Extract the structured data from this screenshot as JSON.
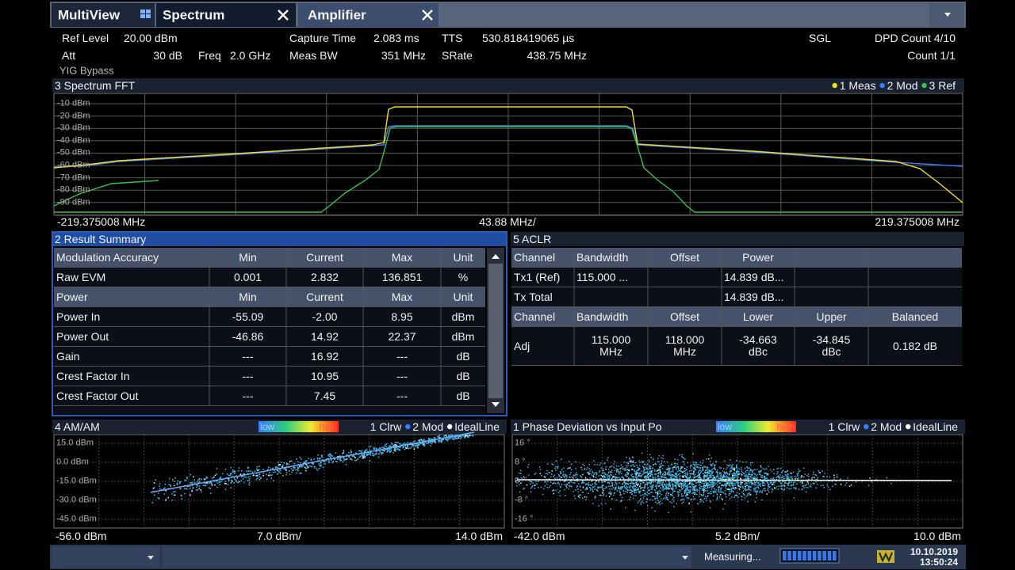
{
  "tabs": [
    {
      "label": "MultiView"
    },
    {
      "label": "Spectrum"
    },
    {
      "label": "Amplifier"
    }
  ],
  "header": {
    "ref_level": {
      "label": "Ref Level",
      "value": "20.00 dBm"
    },
    "att": {
      "label": "Att",
      "value": "30 dB"
    },
    "freq": {
      "label": "Freq",
      "value": "2.0 GHz"
    },
    "yig": "YIG Bypass",
    "capture_time": {
      "label": "Capture Time",
      "value": "2.083 ms"
    },
    "meas_bw": {
      "label": "Meas BW",
      "value": "351 MHz"
    },
    "tts": {
      "label": "TTS",
      "value": "530.818419065 µs"
    },
    "srate": {
      "label": "SRate",
      "value": "438.75 MHz"
    },
    "mode": "SGL",
    "dpd_count": "DPD Count 4/10",
    "count": "Count 1/1"
  },
  "spectrum": {
    "title": "3 Spectrum FFT",
    "legend": [
      "1 Meas",
      "2 Mod",
      "3 Ref"
    ],
    "y_labels": [
      "-10 dBm",
      "-20 dBm",
      "-30 dBm",
      "-40 dBm",
      "-50 dBm",
      "-60 dBm",
      "-70 dBm",
      "-80 dBm",
      "-90 dBm"
    ],
    "x_start": "-219.375008 MHz",
    "x_div": "43.88 MHz/",
    "x_end": "219.375008 MHz"
  },
  "result_summary": {
    "title": "2 Result Summary",
    "sections": [
      {
        "header": [
          "Modulation Accuracy",
          "Min",
          "Current",
          "Max",
          "Unit"
        ],
        "rows": [
          [
            "Raw EVM",
            "0.001",
            "2.832",
            "136.851",
            "%"
          ]
        ]
      },
      {
        "header": [
          "Power",
          "Min",
          "Current",
          "Max",
          "Unit"
        ],
        "rows": [
          [
            "Power In",
            "-55.09",
            "-2.00",
            "8.95",
            "dBm"
          ],
          [
            "Power Out",
            "-46.86",
            "14.92",
            "22.37",
            "dBm"
          ],
          [
            "Gain",
            "---",
            "16.92",
            "---",
            "dB"
          ],
          [
            "Crest Factor In",
            "---",
            "10.95",
            "---",
            "dB"
          ],
          [
            "Crest Factor Out",
            "---",
            "7.45",
            "---",
            "dB"
          ]
        ]
      }
    ]
  },
  "aclr": {
    "title": "5 ACLR",
    "header": [
      "Channel",
      "Bandwidth",
      "Offset",
      "Power"
    ],
    "rows": [
      [
        "Tx1 (Ref)",
        "115.000 ...",
        null,
        "14.839 dB..."
      ],
      [
        "Tx Total",
        null,
        null,
        "14.839 dB..."
      ]
    ],
    "adj_header": [
      "Channel",
      "Bandwidth",
      "Offset",
      "Lower",
      "Upper",
      "Balanced"
    ],
    "adj_rows": [
      [
        "Adj",
        "115.000 MHz",
        "118.000 MHz",
        "-34.663 dBc",
        "-34.845 dBc",
        "0.182 dB"
      ]
    ]
  },
  "am_am": {
    "title": "4 AM/AM",
    "scale_low": "low",
    "scale_high": "high",
    "legend": [
      "1 Clrw",
      "2 Mod",
      "IdealLine"
    ],
    "y_labels": [
      "15.0 dBm",
      "0.0 dBm",
      "-15.0 dBm",
      "-30.0 dBm",
      "-45.0 dBm"
    ],
    "x_start": "-56.0 dBm",
    "x_div": "7.0 dBm/",
    "x_end": "14.0 dBm"
  },
  "phase": {
    "title": "1 Phase Deviation vs Input Po",
    "scale_low": "low",
    "scale_high": "high",
    "legend": [
      "1 Clrw",
      "2 Mod",
      "IdealLine"
    ],
    "y_labels": [
      "16 °",
      "8 °",
      "0 °",
      "-8 °",
      "-16 °"
    ],
    "x_start": "-42.0 dBm",
    "x_div": "5.2 dBm/",
    "x_end": "10.0 dBm"
  },
  "status": {
    "measuring": "Measuring...",
    "date": "10.10.2019",
    "time": "13:50:24"
  }
}
